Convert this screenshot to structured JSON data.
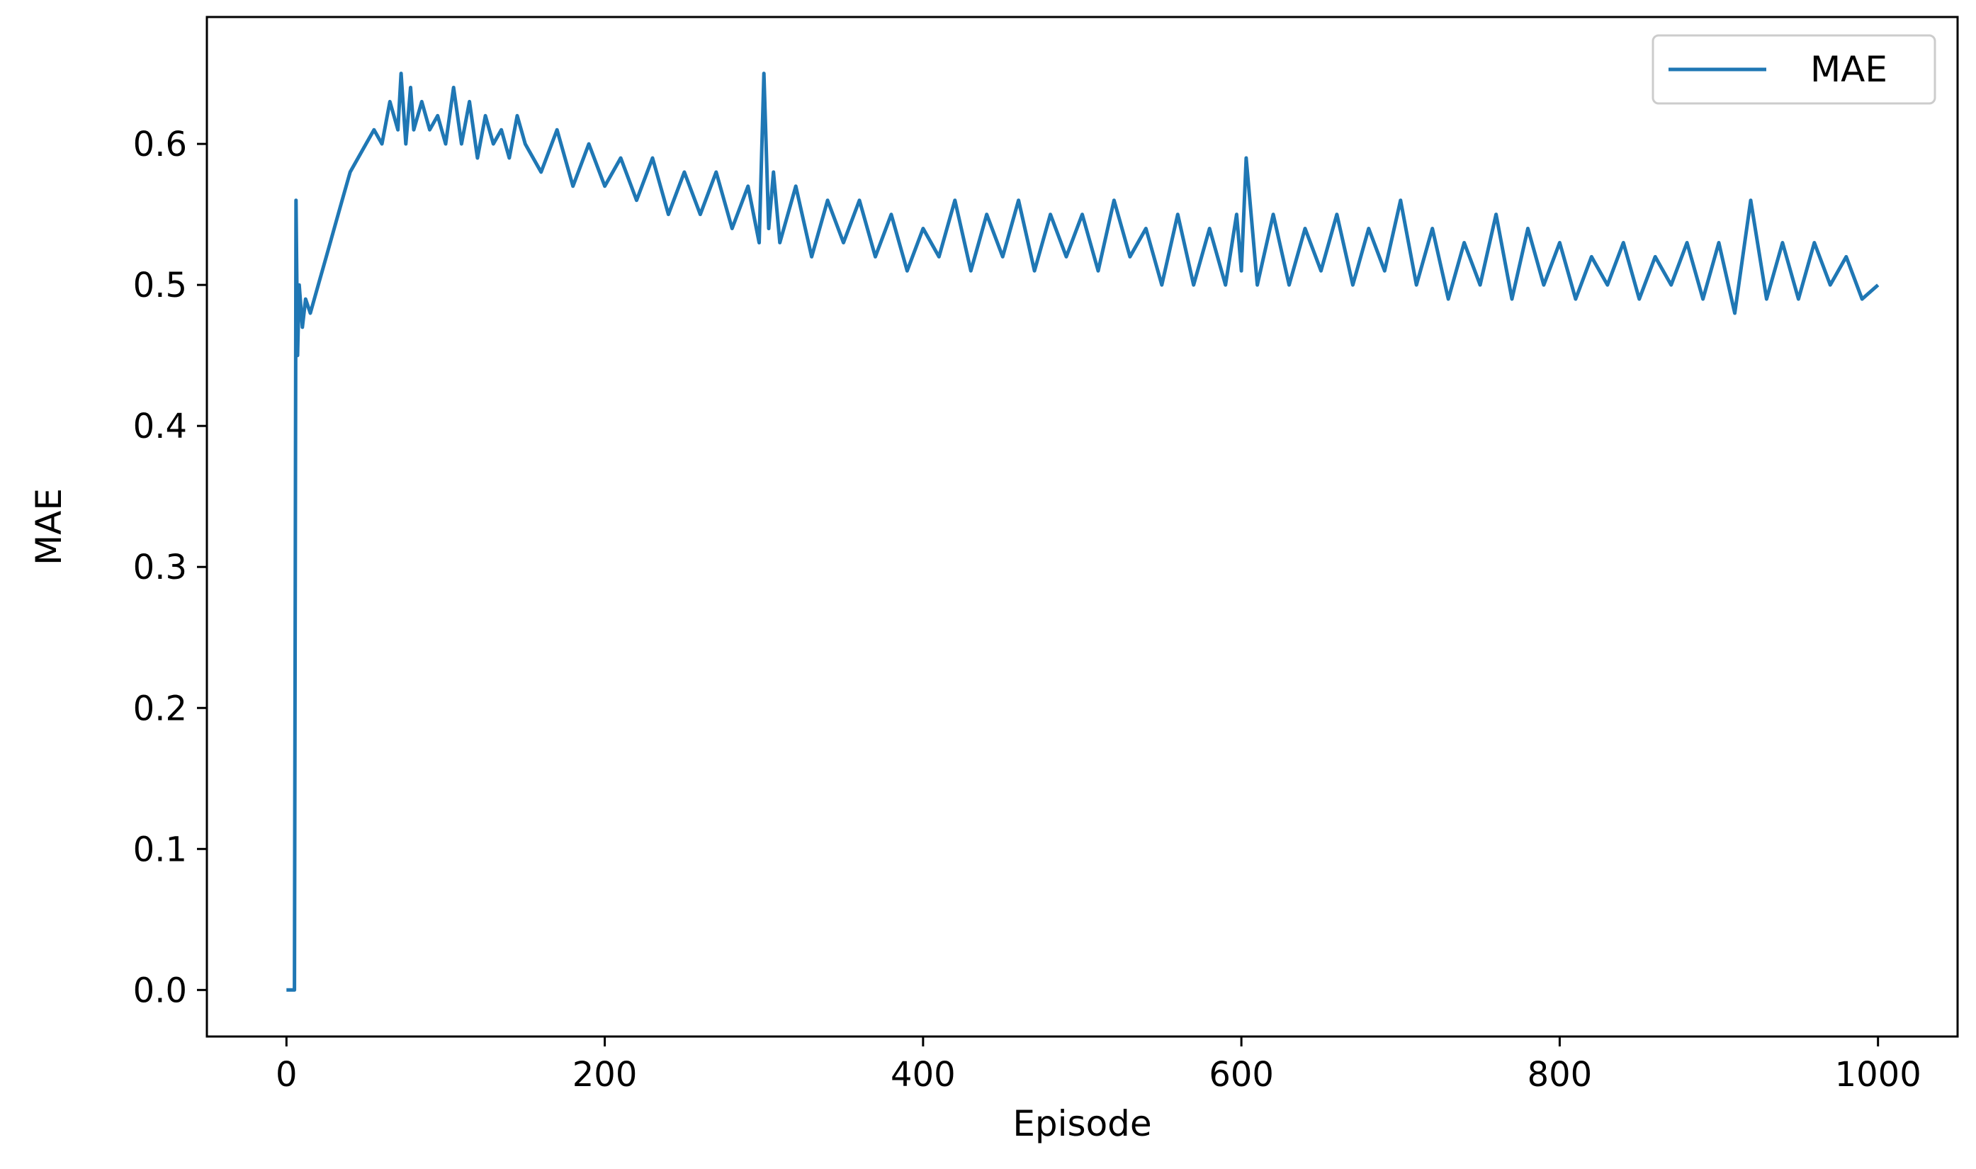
{
  "chart_data": {
    "type": "line",
    "title": "",
    "xlabel": "Episode",
    "ylabel": "MAE",
    "xlim": [
      -50,
      1050
    ],
    "ylim": [
      -0.033,
      0.69
    ],
    "xticks": [
      0,
      200,
      400,
      600,
      800,
      1000
    ],
    "xtick_labels": [
      "0",
      "200",
      "400",
      "600",
      "800",
      "1000"
    ],
    "yticks": [
      0.0,
      0.1,
      0.2,
      0.3,
      0.4,
      0.5,
      0.6
    ],
    "ytick_labels": [
      "0.0",
      "0.1",
      "0.2",
      "0.3",
      "0.4",
      "0.5",
      "0.6"
    ],
    "grid": false,
    "legend": {
      "position": "top-right",
      "entries": [
        "MAE"
      ]
    },
    "series": [
      {
        "name": "MAE",
        "color": "#1f77b4",
        "x": [
          0,
          2,
          3,
          5,
          6,
          7,
          8,
          10,
          12,
          15,
          20,
          25,
          30,
          35,
          40,
          45,
          50,
          55,
          60,
          65,
          70,
          72,
          75,
          78,
          80,
          85,
          90,
          95,
          100,
          105,
          110,
          115,
          120,
          125,
          130,
          135,
          140,
          145,
          150,
          160,
          170,
          180,
          190,
          200,
          210,
          220,
          230,
          240,
          250,
          260,
          270,
          280,
          290,
          297,
          300,
          303,
          306,
          310,
          320,
          330,
          340,
          350,
          360,
          370,
          380,
          390,
          400,
          410,
          420,
          430,
          440,
          450,
          460,
          470,
          480,
          490,
          500,
          510,
          520,
          530,
          540,
          550,
          560,
          570,
          580,
          590,
          597,
          600,
          603,
          610,
          620,
          630,
          640,
          650,
          660,
          670,
          680,
          690,
          700,
          710,
          720,
          730,
          740,
          750,
          760,
          770,
          780,
          790,
          800,
          810,
          820,
          830,
          840,
          850,
          860,
          870,
          880,
          890,
          900,
          910,
          920,
          930,
          940,
          950,
          960,
          970,
          980,
          990,
          1000
        ],
        "values": [
          0.0,
          0.0,
          0.0,
          0.0,
          0.56,
          0.45,
          0.5,
          0.47,
          0.49,
          0.48,
          0.5,
          0.52,
          0.54,
          0.56,
          0.58,
          0.59,
          0.6,
          0.61,
          0.6,
          0.63,
          0.61,
          0.65,
          0.6,
          0.64,
          0.61,
          0.63,
          0.61,
          0.62,
          0.6,
          0.64,
          0.6,
          0.63,
          0.59,
          0.62,
          0.6,
          0.61,
          0.59,
          0.62,
          0.6,
          0.58,
          0.61,
          0.57,
          0.6,
          0.57,
          0.59,
          0.56,
          0.59,
          0.55,
          0.58,
          0.55,
          0.58,
          0.54,
          0.57,
          0.53,
          0.65,
          0.54,
          0.58,
          0.53,
          0.57,
          0.52,
          0.56,
          0.53,
          0.56,
          0.52,
          0.55,
          0.51,
          0.54,
          0.52,
          0.56,
          0.51,
          0.55,
          0.52,
          0.56,
          0.51,
          0.55,
          0.52,
          0.55,
          0.51,
          0.56,
          0.52,
          0.54,
          0.5,
          0.55,
          0.5,
          0.54,
          0.5,
          0.55,
          0.51,
          0.59,
          0.5,
          0.55,
          0.5,
          0.54,
          0.51,
          0.55,
          0.5,
          0.54,
          0.51,
          0.56,
          0.5,
          0.54,
          0.49,
          0.53,
          0.5,
          0.55,
          0.49,
          0.54,
          0.5,
          0.53,
          0.49,
          0.52,
          0.5,
          0.53,
          0.49,
          0.52,
          0.5,
          0.53,
          0.49,
          0.53,
          0.48,
          0.56,
          0.49,
          0.53,
          0.49,
          0.53,
          0.5,
          0.52,
          0.49,
          0.5
        ]
      }
    ]
  }
}
